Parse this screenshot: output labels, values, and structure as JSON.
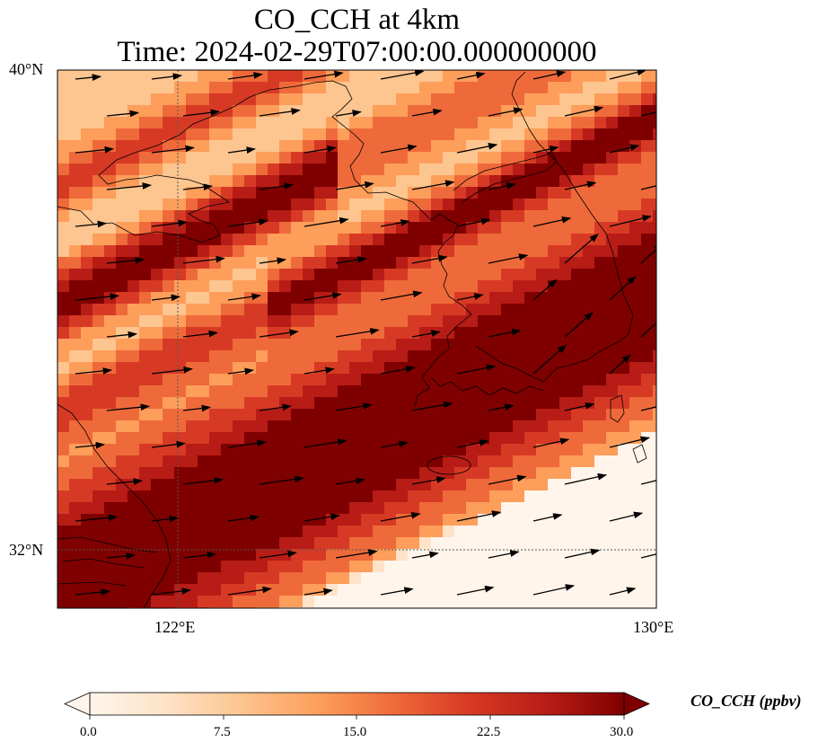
{
  "title": {
    "line1": "CO_CCH at 4km",
    "line2": "Time: 2024-02-29T07:00:00.000000000"
  },
  "axes": {
    "lat_labels": [
      "40°N",
      "32°N"
    ],
    "lon_labels": [
      "122°E",
      "130°E"
    ]
  },
  "colorbar": {
    "label": "CO_CCH (ppbv)",
    "ticks": [
      "0.0",
      "7.5",
      "15.0",
      "22.5",
      "30.0"
    ],
    "colors": [
      "#fff5eb",
      "#fee3c8",
      "#fdc590",
      "#fd9e5b",
      "#ef6a3a",
      "#d73a24",
      "#b71c16",
      "#7f0000"
    ]
  }
}
